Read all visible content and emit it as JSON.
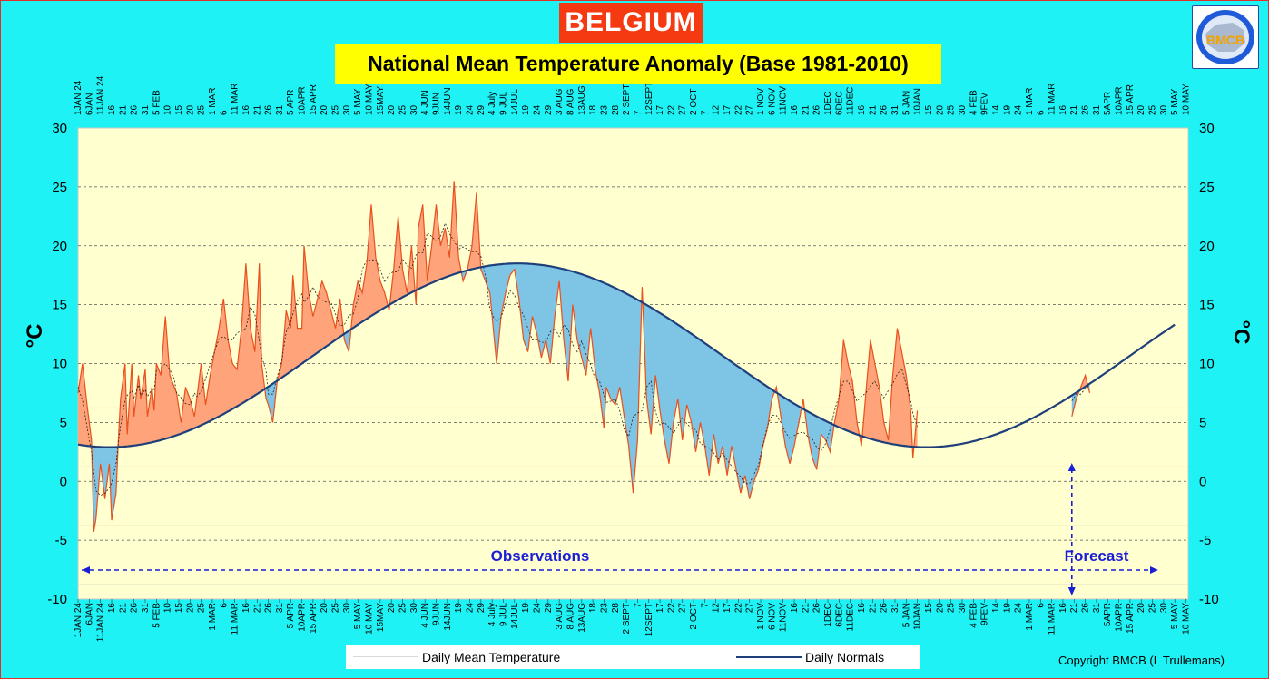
{
  "header": {
    "title": "BELGIUM",
    "subtitle": "National Mean Temperature Anomaly (Base 1981-2010)"
  },
  "logo": {
    "text": "BMCB",
    "icon": "belgium-map-logo-icon"
  },
  "legend": {
    "mean_label": "Daily Mean Temperature",
    "normal_label": "Daily Normals"
  },
  "copyright": "Copyright BMCB (L Trullemans)",
  "colors": {
    "above": "#ffa47a",
    "below": "#7ec4e4",
    "line_obs": "#e8501e",
    "normal": "#1f3f7a",
    "plot_bg": "#ffffd0",
    "annot": "#1a1fd6"
  },
  "chart_data": {
    "type": "area",
    "title": "National Mean Temperature Anomaly (Base 1981-2010)",
    "ylabel": "°C",
    "ylim": [
      -10,
      30
    ],
    "yticks": [
      -10,
      -5,
      0,
      5,
      10,
      15,
      20,
      25,
      30
    ],
    "xlim": [
      0,
      496
    ],
    "grid": true,
    "x_ticks": [
      {
        "d": 0,
        "label": "1JAN 24"
      },
      {
        "d": 5,
        "label": "6JAN"
      },
      {
        "d": 10,
        "label": "11JAN 24"
      },
      {
        "d": 15,
        "label": "16"
      },
      {
        "d": 20,
        "label": "21"
      },
      {
        "d": 25,
        "label": "26"
      },
      {
        "d": 30,
        "label": "31"
      },
      {
        "d": 35,
        "label": "5 FEB"
      },
      {
        "d": 40,
        "label": "10"
      },
      {
        "d": 45,
        "label": "15"
      },
      {
        "d": 50,
        "label": "20"
      },
      {
        "d": 55,
        "label": "25"
      },
      {
        "d": 60,
        "label": "1 MAR"
      },
      {
        "d": 65,
        "label": "6"
      },
      {
        "d": 70,
        "label": "11 MAR"
      },
      {
        "d": 75,
        "label": "16"
      },
      {
        "d": 80,
        "label": "21"
      },
      {
        "d": 85,
        "label": "26"
      },
      {
        "d": 90,
        "label": "31"
      },
      {
        "d": 95,
        "label": "5 APR"
      },
      {
        "d": 100,
        "label": "10APR"
      },
      {
        "d": 105,
        "label": "15 APR"
      },
      {
        "d": 110,
        "label": "20"
      },
      {
        "d": 115,
        "label": "25"
      },
      {
        "d": 120,
        "label": "30"
      },
      {
        "d": 125,
        "label": "5 MAY"
      },
      {
        "d": 130,
        "label": "10 MAY"
      },
      {
        "d": 135,
        "label": "15MAY"
      },
      {
        "d": 140,
        "label": "20"
      },
      {
        "d": 145,
        "label": "25"
      },
      {
        "d": 150,
        "label": "30"
      },
      {
        "d": 155,
        "label": "4 JUN"
      },
      {
        "d": 160,
        "label": "9JUN"
      },
      {
        "d": 165,
        "label": "14JUN"
      },
      {
        "d": 170,
        "label": "19"
      },
      {
        "d": 175,
        "label": "24"
      },
      {
        "d": 180,
        "label": "29"
      },
      {
        "d": 185,
        "label": "4 July"
      },
      {
        "d": 190,
        "label": "9 JUL"
      },
      {
        "d": 195,
        "label": "14JUL"
      },
      {
        "d": 200,
        "label": "19"
      },
      {
        "d": 205,
        "label": "24"
      },
      {
        "d": 210,
        "label": "29"
      },
      {
        "d": 215,
        "label": "3 AUG"
      },
      {
        "d": 220,
        "label": "8 AUG"
      },
      {
        "d": 225,
        "label": "13AUG"
      },
      {
        "d": 230,
        "label": "18"
      },
      {
        "d": 235,
        "label": "23"
      },
      {
        "d": 240,
        "label": "28"
      },
      {
        "d": 245,
        "label": "2 SEPT"
      },
      {
        "d": 250,
        "label": "7"
      },
      {
        "d": 255,
        "label": "12SEPT"
      },
      {
        "d": 260,
        "label": "17"
      },
      {
        "d": 265,
        "label": "22"
      },
      {
        "d": 270,
        "label": "27"
      },
      {
        "d": 275,
        "label": "2 OCT"
      },
      {
        "d": 280,
        "label": "7"
      },
      {
        "d": 285,
        "label": "12"
      },
      {
        "d": 290,
        "label": "17"
      },
      {
        "d": 295,
        "label": "22"
      },
      {
        "d": 300,
        "label": "27"
      },
      {
        "d": 305,
        "label": "1 NOV"
      },
      {
        "d": 310,
        "label": "6 NOV"
      },
      {
        "d": 315,
        "label": "11NOV"
      },
      {
        "d": 320,
        "label": "16"
      },
      {
        "d": 325,
        "label": "21"
      },
      {
        "d": 330,
        "label": "26"
      },
      {
        "d": 335,
        "label": "1DEC"
      },
      {
        "d": 340,
        "label": "6DEC"
      },
      {
        "d": 345,
        "label": "11DEC"
      },
      {
        "d": 350,
        "label": "16"
      },
      {
        "d": 355,
        "label": "21"
      },
      {
        "d": 360,
        "label": "26"
      },
      {
        "d": 365,
        "label": "31"
      },
      {
        "d": 370,
        "label": "5 JAN"
      },
      {
        "d": 375,
        "label": "10JAN"
      },
      {
        "d": 380,
        "label": "15"
      },
      {
        "d": 385,
        "label": "20"
      },
      {
        "d": 390,
        "label": "25"
      },
      {
        "d": 395,
        "label": "30"
      },
      {
        "d": 400,
        "label": "4 FEB"
      },
      {
        "d": 405,
        "label": "9FEV"
      },
      {
        "d": 410,
        "label": "14"
      },
      {
        "d": 415,
        "label": "19"
      },
      {
        "d": 420,
        "label": "24"
      },
      {
        "d": 425,
        "label": "1 MAR"
      },
      {
        "d": 430,
        "label": "6"
      },
      {
        "d": 435,
        "label": "11 MAR"
      },
      {
        "d": 440,
        "label": "16"
      },
      {
        "d": 445,
        "label": "21"
      },
      {
        "d": 450,
        "label": "26"
      },
      {
        "d": 455,
        "label": "31"
      },
      {
        "d": 460,
        "label": "5APR"
      },
      {
        "d": 465,
        "label": "10APR"
      },
      {
        "d": 470,
        "label": "15 APR"
      },
      {
        "d": 475,
        "label": "20"
      },
      {
        "d": 480,
        "label": "25"
      },
      {
        "d": 485,
        "label": "30"
      },
      {
        "d": 490,
        "label": "5 MAY"
      },
      {
        "d": 495,
        "label": "10 MAY"
      }
    ],
    "observations_label": "Observations",
    "forecast_label": "Forecast",
    "forecast_start_day": 444,
    "series": [
      {
        "name": "Daily Mean Temperature",
        "kind": "observed",
        "points": [
          [
            0,
            7.5
          ],
          [
            2,
            10
          ],
          [
            4,
            6.5
          ],
          [
            6,
            3.5
          ],
          [
            7,
            -4.3
          ],
          [
            8,
            -3.2
          ],
          [
            10,
            1.5
          ],
          [
            12,
            -1.5
          ],
          [
            14,
            1.5
          ],
          [
            15,
            -3.3
          ],
          [
            17,
            -1
          ],
          [
            18,
            3.5
          ],
          [
            19,
            7
          ],
          [
            21,
            10
          ],
          [
            22,
            4
          ],
          [
            24,
            10
          ],
          [
            25,
            5.5
          ],
          [
            27,
            9
          ],
          [
            28,
            7
          ],
          [
            30,
            9.5
          ],
          [
            31,
            5.5
          ],
          [
            33,
            8
          ],
          [
            34,
            6
          ],
          [
            35,
            10
          ],
          [
            37,
            9
          ],
          [
            39,
            14
          ],
          [
            41,
            9
          ],
          [
            43,
            8
          ],
          [
            44,
            7.5
          ],
          [
            46,
            5
          ],
          [
            48,
            8
          ],
          [
            50,
            7
          ],
          [
            52,
            5.5
          ],
          [
            53,
            7
          ],
          [
            55,
            10
          ],
          [
            57,
            6.5
          ],
          [
            59,
            9
          ],
          [
            61,
            11
          ],
          [
            63,
            13
          ],
          [
            65,
            15.5
          ],
          [
            67,
            12
          ],
          [
            69,
            10
          ],
          [
            71,
            9.5
          ],
          [
            73,
            13
          ],
          [
            75,
            18.5
          ],
          [
            77,
            13
          ],
          [
            79,
            11
          ],
          [
            81,
            18.5
          ],
          [
            82,
            10
          ],
          [
            84,
            7
          ],
          [
            85,
            6.5
          ],
          [
            87,
            5
          ],
          [
            89,
            8.5
          ],
          [
            91,
            10
          ],
          [
            93,
            14.5
          ],
          [
            95,
            13
          ],
          [
            96,
            17.5
          ],
          [
            98,
            13
          ],
          [
            100,
            13
          ],
          [
            101,
            20
          ],
          [
            103,
            16
          ],
          [
            105,
            14
          ],
          [
            107,
            15.5
          ],
          [
            109,
            17
          ],
          [
            111,
            16
          ],
          [
            113,
            14.5
          ],
          [
            115,
            13
          ],
          [
            117,
            15.5
          ],
          [
            119,
            12
          ],
          [
            121,
            11
          ],
          [
            123,
            15
          ],
          [
            125,
            17
          ],
          [
            127,
            16
          ],
          [
            129,
            18.5
          ],
          [
            131,
            23.5
          ],
          [
            133,
            19
          ],
          [
            135,
            17
          ],
          [
            137,
            16
          ],
          [
            139,
            14.5
          ],
          [
            141,
            18
          ],
          [
            143,
            22.5
          ],
          [
            145,
            18
          ],
          [
            147,
            16
          ],
          [
            149,
            20
          ],
          [
            151,
            15
          ],
          [
            152,
            21.5
          ],
          [
            154,
            23.5
          ],
          [
            156,
            17
          ],
          [
            158,
            20
          ],
          [
            160,
            23.5
          ],
          [
            162,
            20
          ],
          [
            164,
            21.5
          ],
          [
            166,
            19
          ],
          [
            168,
            25.5
          ],
          [
            170,
            19
          ],
          [
            172,
            17
          ],
          [
            174,
            18
          ],
          [
            176,
            20
          ],
          [
            178,
            24.5
          ],
          [
            180,
            18
          ],
          [
            182,
            17
          ],
          [
            184,
            16
          ],
          [
            186,
            12
          ],
          [
            187,
            10
          ],
          [
            189,
            14
          ],
          [
            191,
            16
          ],
          [
            193,
            17.5
          ],
          [
            195,
            18
          ],
          [
            197,
            15.5
          ],
          [
            199,
            12
          ],
          [
            201,
            11
          ],
          [
            203,
            14
          ],
          [
            205,
            12.5
          ],
          [
            207,
            10.5
          ],
          [
            209,
            12
          ],
          [
            211,
            10
          ],
          [
            213,
            14
          ],
          [
            215,
            17
          ],
          [
            217,
            12
          ],
          [
            219,
            8.5
          ],
          [
            221,
            15
          ],
          [
            223,
            12
          ],
          [
            225,
            10.5
          ],
          [
            227,
            9
          ],
          [
            229,
            13
          ],
          [
            231,
            9.5
          ],
          [
            233,
            7.5
          ],
          [
            235,
            4.5
          ],
          [
            236,
            8
          ],
          [
            238,
            7
          ],
          [
            240,
            6.5
          ],
          [
            242,
            8
          ],
          [
            244,
            5.5
          ],
          [
            246,
            3
          ],
          [
            248,
            -1
          ],
          [
            250,
            3.5
          ],
          [
            252,
            16.5
          ],
          [
            254,
            7
          ],
          [
            256,
            4
          ],
          [
            258,
            9
          ],
          [
            260,
            6
          ],
          [
            262,
            3.5
          ],
          [
            264,
            1.5
          ],
          [
            266,
            5
          ],
          [
            268,
            7
          ],
          [
            270,
            3.5
          ],
          [
            272,
            6.5
          ],
          [
            274,
            5
          ],
          [
            276,
            2.5
          ],
          [
            278,
            5
          ],
          [
            280,
            3
          ],
          [
            282,
            0.5
          ],
          [
            284,
            4
          ],
          [
            286,
            1.5
          ],
          [
            288,
            3
          ],
          [
            290,
            0.5
          ],
          [
            292,
            3
          ],
          [
            294,
            1
          ],
          [
            296,
            -1
          ],
          [
            298,
            0.5
          ],
          [
            300,
            -1.5
          ],
          [
            302,
            0
          ],
          [
            304,
            1
          ],
          [
            306,
            3
          ],
          [
            308,
            4.5
          ],
          [
            310,
            7
          ],
          [
            312,
            8
          ],
          [
            314,
            5.5
          ],
          [
            316,
            3
          ],
          [
            318,
            1.5
          ],
          [
            320,
            3
          ],
          [
            322,
            5
          ],
          [
            324,
            7
          ],
          [
            326,
            4
          ],
          [
            328,
            2
          ],
          [
            330,
            1
          ],
          [
            332,
            4
          ],
          [
            334,
            3.5
          ],
          [
            336,
            2.5
          ],
          [
            338,
            5
          ],
          [
            340,
            7
          ],
          [
            342,
            12
          ],
          [
            344,
            10
          ],
          [
            346,
            8.5
          ],
          [
            348,
            5
          ],
          [
            350,
            3
          ],
          [
            352,
            7.5
          ],
          [
            354,
            12
          ],
          [
            356,
            10
          ],
          [
            358,
            8
          ],
          [
            360,
            5
          ],
          [
            362,
            3.5
          ],
          [
            364,
            9
          ],
          [
            366,
            13
          ],
          [
            368,
            11
          ],
          [
            370,
            9
          ],
          [
            372,
            6
          ],
          [
            373,
            2
          ],
          [
            375,
            6
          ]
        ]
      },
      {
        "name": "Forecast",
        "kind": "forecast",
        "points": [
          [
            444,
            5.5
          ],
          [
            446,
            7
          ],
          [
            448,
            8
          ],
          [
            450,
            9
          ],
          [
            452,
            7.5
          ]
        ]
      }
    ],
    "normals": {
      "name": "Daily Normals",
      "note": "smooth seasonal curve, min ~2.9 °C mid-January, max ~18.5 °C late July"
    }
  }
}
